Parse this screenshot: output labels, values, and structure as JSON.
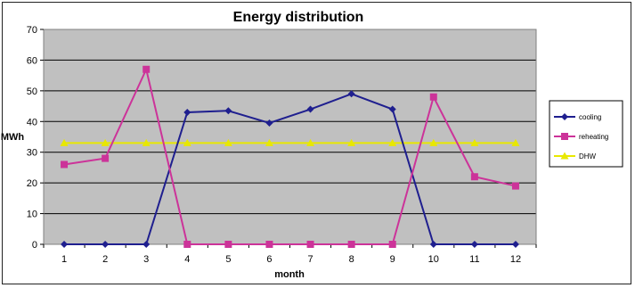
{
  "chart_data": {
    "type": "line",
    "title": "Energy distribution",
    "xlabel": "month",
    "ylabel": "MWh",
    "x": [
      1,
      2,
      3,
      4,
      5,
      6,
      7,
      8,
      9,
      10,
      11,
      12
    ],
    "ylim": [
      0,
      70
    ],
    "yticks": [
      0,
      10,
      20,
      30,
      40,
      50,
      60,
      70
    ],
    "grid": true,
    "legend_position": "right",
    "plot_background": "#c0c0c0",
    "series": [
      {
        "name": "cooling",
        "color": "#1f1f8f",
        "marker": "diamond",
        "values": [
          0,
          0,
          0,
          43,
          43.5,
          39.5,
          44,
          49,
          44,
          0,
          0,
          0
        ]
      },
      {
        "name": "reheating",
        "color": "#cc3399",
        "marker": "square",
        "values": [
          26,
          28,
          57,
          0,
          0,
          0,
          0,
          0,
          0,
          48,
          22,
          19
        ]
      },
      {
        "name": "DHW",
        "color": "#e8e800",
        "marker": "triangle",
        "values": [
          33,
          33,
          33,
          33,
          33,
          33,
          33,
          33,
          33,
          33,
          33,
          33
        ]
      }
    ]
  }
}
